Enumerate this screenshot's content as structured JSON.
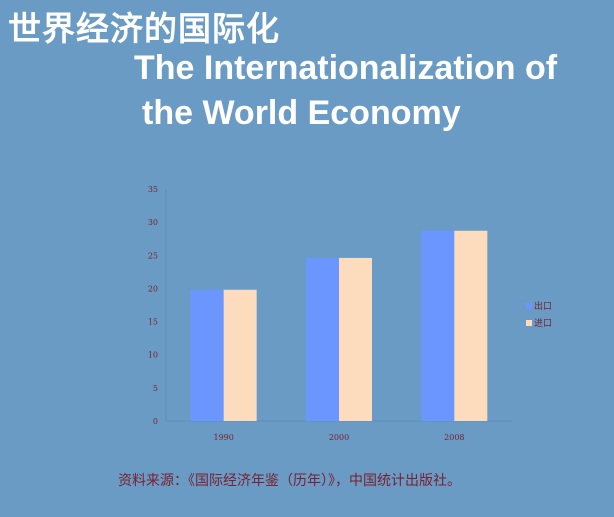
{
  "title_cn": "世界经济的国际化",
  "title_en_line1": "The Internationalization of",
  "title_en_line2": "the World Economy",
  "source": "资料来源：《国际经济年鉴（历年）》，中国统计出版社。",
  "colors": {
    "background": "#6a9bc4",
    "export": "#6b96ff",
    "import": "#fcdcbc",
    "axis_text": "#7a1f2e"
  },
  "chart_data": {
    "type": "bar",
    "title": "",
    "xlabel": "",
    "ylabel": "",
    "categories": [
      "1990",
      "2000",
      "2008"
    ],
    "series": [
      {
        "name": "出口",
        "values": [
          19.8,
          24.6,
          28.7
        ]
      },
      {
        "name": "进口",
        "values": [
          19.8,
          24.6,
          28.7
        ]
      }
    ],
    "ylim": [
      0,
      35
    ],
    "yticks": [
      0,
      5,
      10,
      15,
      20,
      25,
      30,
      35
    ],
    "grid": false,
    "legend_position": "right"
  }
}
